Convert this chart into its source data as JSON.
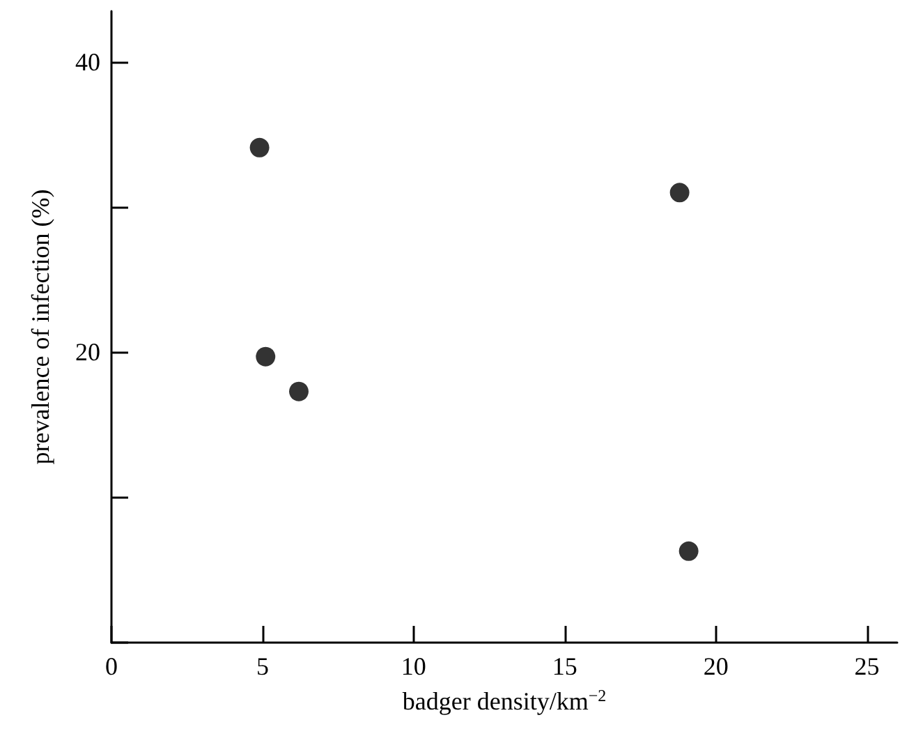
{
  "chart_data": {
    "type": "scatter",
    "xlabel": "badger density/km$^{−2}$",
    "ylabel": "prevalence of infection (%)",
    "x": [
      4.9,
      5.1,
      6.2,
      18.8,
      19.1
    ],
    "values": [
      34.1,
      19.7,
      17.3,
      31.0,
      6.3
    ],
    "color": "#000000",
    "marker": "circle",
    "grid": false,
    "xlim": [
      0,
      26
    ],
    "xticks": [
      0,
      5,
      10,
      15,
      20,
      25
    ],
    "ylim": [
      0,
      43.5
    ],
    "yticks": [
      {
        "value": 0,
        "label": null
      },
      20,
      40,
      {
        "value": 10,
        "label": null
      },
      {
        "value": 30,
        "label": null
      }
    ]
  }
}
